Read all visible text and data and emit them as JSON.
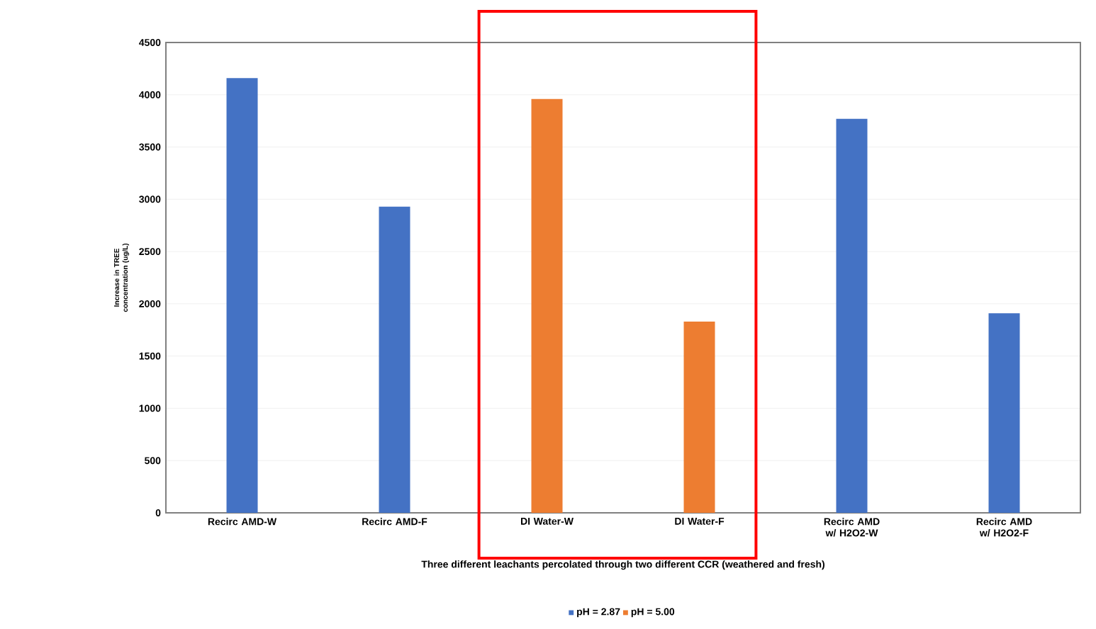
{
  "chart_data": {
    "type": "bar",
    "xlabel": "Three different leachants percolated through two different CCR (weathered and fresh)",
    "ylabel": "Increase in TREE concentration (ug/L)",
    "categories": [
      "Recirc AMD-W",
      "Recirc AMD-F",
      "DI Water-W",
      "DI Water-F",
      "Recirc AMD w/ H2O2-W",
      "Recirc AMD w/ H2O2-F"
    ],
    "series": [
      {
        "name": "pH = 2.87",
        "color": "#4472c4",
        "values": [
          4160,
          2930,
          null,
          null,
          3770,
          1910
        ]
      },
      {
        "name": "pH = 5.00",
        "color": "#ed7d31",
        "values": [
          null,
          null,
          3960,
          1830,
          null,
          null
        ]
      }
    ],
    "ylim": [
      0,
      4500
    ],
    "yticks": [
      0,
      500,
      1000,
      1500,
      2000,
      2500,
      3000,
      3500,
      4000,
      4500
    ],
    "grid": "y",
    "legend": "bottom"
  }
}
